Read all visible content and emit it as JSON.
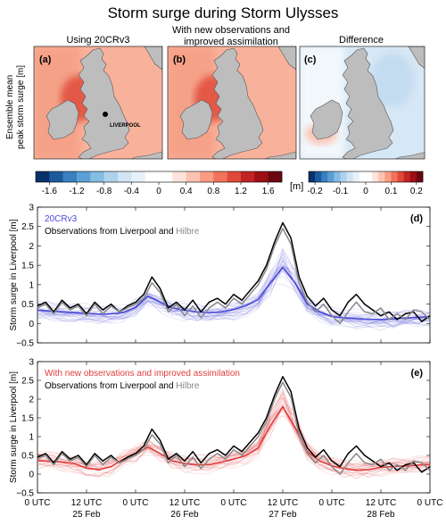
{
  "figure_title": "Storm surge during Storm Ulysses",
  "maps": {
    "ylabel_line1": "Ensemble mean",
    "ylabel_line2": "peak storm surge [m]",
    "panels": [
      {
        "letter": "(a)",
        "title": [
          "Using 20CRv3"
        ],
        "city_label": "LIVERPOOL"
      },
      {
        "letter": "(b)",
        "title": [
          "With new observations and",
          "improved assimilation"
        ]
      },
      {
        "letter": "(c)",
        "title": [
          "Difference"
        ]
      }
    ],
    "colorbar_main": {
      "ticks": [
        "-1.6",
        "-1.2",
        "-0.8",
        "-0.4",
        "0",
        "0.4",
        "0.8",
        "1.2",
        "1.6"
      ],
      "unit": "[m]",
      "colors": [
        "#08306b",
        "#1c5a9e",
        "#3a7fc0",
        "#5c9fd4",
        "#85bde3",
        "#aed2ec",
        "#d0e4f3",
        "#e8f1f9",
        "#ffffff",
        "#ffffff",
        "#fde3da",
        "#fcc3b1",
        "#f99c83",
        "#f2725b",
        "#e04839",
        "#c22323",
        "#9c0f15",
        "#6b0710"
      ]
    },
    "colorbar_diff": {
      "ticks": [
        "-0.2",
        "-0.1",
        "0",
        "0.1",
        "0.2"
      ],
      "colors": [
        "#08306b",
        "#1c5a9e",
        "#3a7fc0",
        "#5c9fd4",
        "#85bde3",
        "#aed2ec",
        "#d0e4f3",
        "#e8f1f9",
        "#ffffff",
        "#ffffff",
        "#fde3da",
        "#fcc3b1",
        "#f99c83",
        "#f2725b",
        "#e04839",
        "#c22323",
        "#9c0f15",
        "#6b0710"
      ]
    },
    "sea_color_a": "#f5a58c",
    "sea_color_b": "#f5a58c",
    "land_color": "#bdbdbd"
  },
  "chart_data": [
    {
      "type": "line",
      "panel": "(d)",
      "ylabel": "Storm surge in Liverpool [m]",
      "ylim": [
        -0.5,
        3
      ],
      "yticks": [
        -0.5,
        0,
        0.5,
        1,
        1.5,
        2,
        2.5,
        3
      ],
      "ytick_labels": [
        "−0.5",
        "0",
        "0.5",
        "1",
        "1.5",
        "2",
        "2.5",
        "3"
      ],
      "xlim": [
        0,
        96
      ],
      "legend_line1": "20CRv3",
      "legend_line2_prefix": "Observations from Liverpool and ",
      "legend_line2_suffix": "Hilbre",
      "series": [
        {
          "name": "20CRv3",
          "color": "#4a4ad8",
          "x": [
            0,
            3,
            6,
            9,
            12,
            15,
            18,
            21,
            24,
            27,
            30,
            33,
            36,
            39,
            42,
            45,
            48,
            51,
            54,
            57,
            60,
            63,
            66,
            69,
            72,
            75,
            78,
            81,
            84,
            87,
            90,
            93,
            96
          ],
          "values": [
            0.34,
            0.32,
            0.3,
            0.28,
            0.26,
            0.24,
            0.25,
            0.28,
            0.42,
            0.7,
            0.55,
            0.4,
            0.34,
            0.3,
            0.28,
            0.3,
            0.36,
            0.46,
            0.62,
            1.05,
            1.45,
            1.05,
            0.5,
            0.3,
            0.18,
            0.15,
            0.12,
            0.11,
            0.1,
            0.12,
            0.14,
            0.16,
            0.18
          ]
        },
        {
          "name": "Liverpool",
          "color": "#000000",
          "x": [
            0,
            2,
            4,
            6,
            8,
            10,
            12,
            14,
            16,
            18,
            20,
            22,
            24,
            26,
            28,
            30,
            32,
            34,
            36,
            38,
            40,
            42,
            44,
            46,
            48,
            50,
            52,
            54,
            56,
            58,
            60,
            62,
            64,
            66,
            68,
            70,
            72,
            74,
            76,
            78,
            80,
            82,
            84,
            86,
            88,
            90,
            92,
            94,
            96
          ],
          "values": [
            0.45,
            0.55,
            0.3,
            0.6,
            0.4,
            0.5,
            0.25,
            0.55,
            0.35,
            0.5,
            0.3,
            0.45,
            0.55,
            0.75,
            1.2,
            0.9,
            0.4,
            0.55,
            0.35,
            0.6,
            0.3,
            0.55,
            0.65,
            0.5,
            0.75,
            0.6,
            0.85,
            1.1,
            1.5,
            2.1,
            2.6,
            2.2,
            1.2,
            0.7,
            0.45,
            0.65,
            0.35,
            0.2,
            0.55,
            0.75,
            0.5,
            0.35,
            0.2,
            0.3,
            0.1,
            0.25,
            0.3,
            0.05,
            0.2
          ]
        },
        {
          "name": "Hilbre",
          "color": "#888888",
          "x": [
            0,
            2,
            4,
            6,
            8,
            10,
            12,
            14,
            16,
            18,
            20,
            22,
            24,
            26,
            28,
            30,
            32,
            34,
            36,
            38,
            40,
            42,
            44,
            46,
            48,
            50,
            52,
            54,
            56,
            58,
            60,
            62,
            64,
            66,
            68,
            70,
            72,
            74,
            76,
            78,
            80,
            82,
            84,
            86,
            88,
            90,
            92,
            94,
            96
          ],
          "values": [
            0.4,
            0.5,
            0.25,
            0.55,
            0.35,
            0.45,
            0.2,
            0.5,
            0.25,
            0.45,
            0.3,
            0.4,
            0.5,
            0.65,
            1.05,
            0.8,
            0.3,
            0.5,
            0.2,
            0.45,
            0.15,
            0.4,
            0.55,
            0.4,
            0.65,
            0.5,
            0.75,
            1.0,
            1.4,
            2.0,
            2.45,
            2.05,
            1.05,
            0.55,
            0.3,
            0.5,
            0.2,
            0.0,
            0.3,
            0.55,
            0.3,
            0.25,
            0.4,
            0.1,
            0.25,
            0.1,
            0.35,
            0.3,
            0.1
          ]
        }
      ]
    },
    {
      "type": "line",
      "panel": "(e)",
      "ylabel": "Storm surge in Liverpool [m]",
      "ylim": [
        -0.5,
        3
      ],
      "yticks": [
        -0.5,
        0,
        0.5,
        1,
        1.5,
        2,
        2.5,
        3
      ],
      "ytick_labels": [
        "−0.5",
        "0",
        "0.5",
        "1",
        "1.5",
        "2",
        "2.5",
        "3"
      ],
      "xlim": [
        0,
        96
      ],
      "xtick_labels_top": [
        "0 UTC",
        "12 UTC",
        "0 UTC",
        "12 UTC",
        "0 UTC",
        "12 UTC",
        "0 UTC",
        "12 UTC",
        "0 UTC"
      ],
      "xtick_labels_bottom": [
        "",
        "25 Feb",
        "",
        "26 Feb",
        "",
        "27 Feb",
        "",
        "28 Feb",
        ""
      ],
      "legend_line1": "With new observations and improved assimilation",
      "legend_line2_prefix": "Observations from Liverpool and ",
      "legend_line2_suffix": "Hilbre",
      "series": [
        {
          "name": "With new observations and improved assimilation",
          "color": "#e03c3c",
          "x": [
            0,
            3,
            6,
            9,
            12,
            15,
            18,
            21,
            24,
            27,
            30,
            33,
            36,
            39,
            42,
            45,
            48,
            51,
            54,
            57,
            60,
            63,
            66,
            69,
            72,
            75,
            78,
            81,
            84,
            87,
            90,
            93,
            96
          ],
          "values": [
            0.36,
            0.34,
            0.32,
            0.28,
            0.16,
            0.12,
            0.2,
            0.4,
            0.55,
            0.72,
            0.55,
            0.35,
            0.28,
            0.25,
            0.25,
            0.32,
            0.4,
            0.5,
            0.7,
            1.3,
            1.8,
            1.25,
            0.6,
            0.35,
            0.22,
            0.15,
            0.1,
            0.12,
            0.18,
            0.2,
            0.22,
            0.24,
            0.26
          ]
        },
        {
          "name": "Liverpool",
          "color": "#000000",
          "x": [
            0,
            2,
            4,
            6,
            8,
            10,
            12,
            14,
            16,
            18,
            20,
            22,
            24,
            26,
            28,
            30,
            32,
            34,
            36,
            38,
            40,
            42,
            44,
            46,
            48,
            50,
            52,
            54,
            56,
            58,
            60,
            62,
            64,
            66,
            68,
            70,
            72,
            74,
            76,
            78,
            80,
            82,
            84,
            86,
            88,
            90,
            92,
            94,
            96
          ],
          "values": [
            0.45,
            0.55,
            0.3,
            0.6,
            0.4,
            0.5,
            0.25,
            0.55,
            0.35,
            0.5,
            0.3,
            0.45,
            0.55,
            0.75,
            1.2,
            0.9,
            0.4,
            0.55,
            0.35,
            0.6,
            0.3,
            0.55,
            0.65,
            0.5,
            0.75,
            0.6,
            0.85,
            1.1,
            1.5,
            2.1,
            2.6,
            2.2,
            1.2,
            0.7,
            0.45,
            0.65,
            0.35,
            0.2,
            0.55,
            0.75,
            0.5,
            0.35,
            0.2,
            0.3,
            0.1,
            0.25,
            0.3,
            0.05,
            0.2
          ]
        },
        {
          "name": "Hilbre",
          "color": "#888888",
          "x": [
            0,
            2,
            4,
            6,
            8,
            10,
            12,
            14,
            16,
            18,
            20,
            22,
            24,
            26,
            28,
            30,
            32,
            34,
            36,
            38,
            40,
            42,
            44,
            46,
            48,
            50,
            52,
            54,
            56,
            58,
            60,
            62,
            64,
            66,
            68,
            70,
            72,
            74,
            76,
            78,
            80,
            82,
            84,
            86,
            88,
            90,
            92,
            94,
            96
          ],
          "values": [
            0.4,
            0.5,
            0.25,
            0.55,
            0.35,
            0.45,
            0.2,
            0.5,
            0.25,
            0.45,
            0.3,
            0.4,
            0.5,
            0.65,
            1.05,
            0.8,
            0.3,
            0.5,
            0.2,
            0.45,
            0.15,
            0.4,
            0.55,
            0.4,
            0.65,
            0.5,
            0.75,
            1.0,
            1.4,
            2.0,
            2.45,
            2.05,
            1.05,
            0.55,
            0.3,
            0.5,
            0.2,
            0.0,
            0.3,
            0.55,
            0.3,
            0.25,
            0.4,
            0.1,
            0.25,
            0.1,
            0.35,
            0.3,
            0.1
          ]
        }
      ]
    }
  ]
}
